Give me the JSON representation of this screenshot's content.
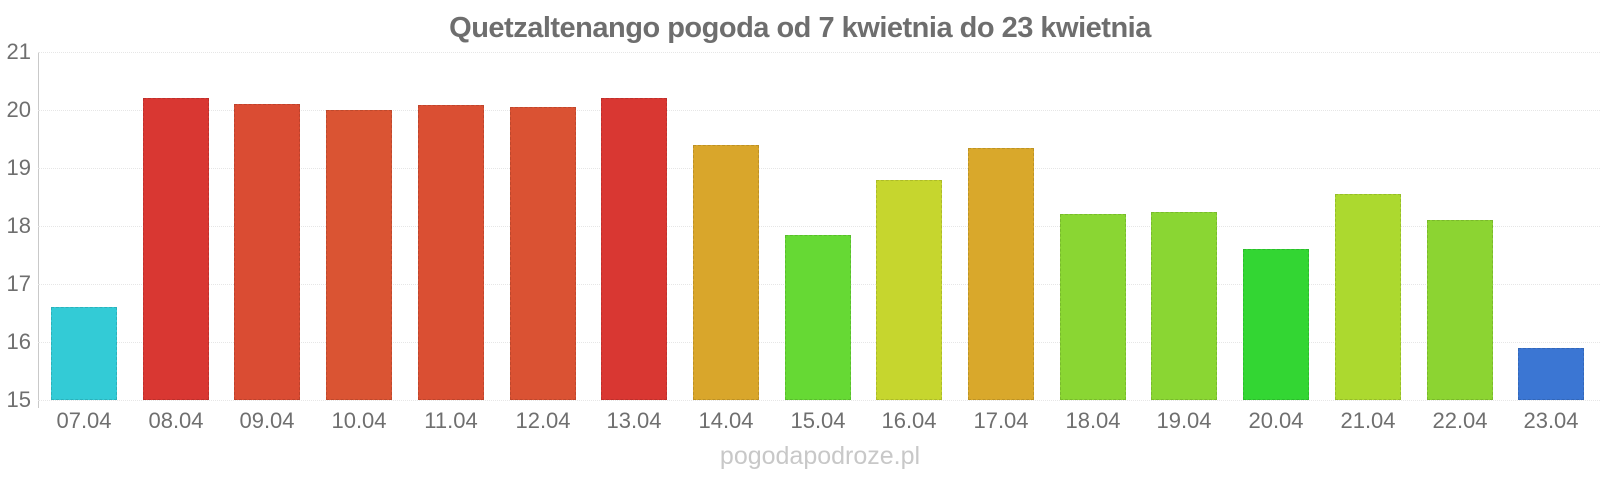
{
  "title": "Quetzaltenango pogoda od 7 kwietnia do 23 kwietnia",
  "watermark": "pogodapodroze.pl",
  "chart_data": {
    "type": "bar",
    "title": "Quetzaltenango pogoda od 7 kwietnia do 23 kwietnia",
    "xlabel": "",
    "ylabel": "",
    "ylim": [
      15,
      21
    ],
    "y_ticks": [
      21,
      20,
      19,
      18,
      17,
      16,
      15
    ],
    "grid": "horizontal-dotted",
    "legend": "none",
    "categories": [
      "07.04",
      "08.04",
      "09.04",
      "10.04",
      "11.04",
      "12.04",
      "13.04",
      "14.04",
      "15.04",
      "16.04",
      "17.04",
      "18.04",
      "19.04",
      "20.04",
      "21.04",
      "22.04",
      "23.04"
    ],
    "values": [
      16.6,
      20.2,
      20.1,
      20.0,
      20.08,
      20.05,
      20.2,
      19.4,
      17.85,
      18.8,
      19.35,
      18.2,
      18.25,
      17.6,
      18.55,
      18.1,
      15.9
    ],
    "colors": [
      "#33CBD6",
      "#D93732",
      "#DA4C33",
      "#DA5433",
      "#DA4F33",
      "#DA5233",
      "#D93732",
      "#D9A62B",
      "#66D934",
      "#C6D62E",
      "#D9A82B",
      "#8AD633",
      "#8AD633",
      "#33D633",
      "#ACD92F",
      "#8CD432",
      "#3B76D3"
    ]
  }
}
